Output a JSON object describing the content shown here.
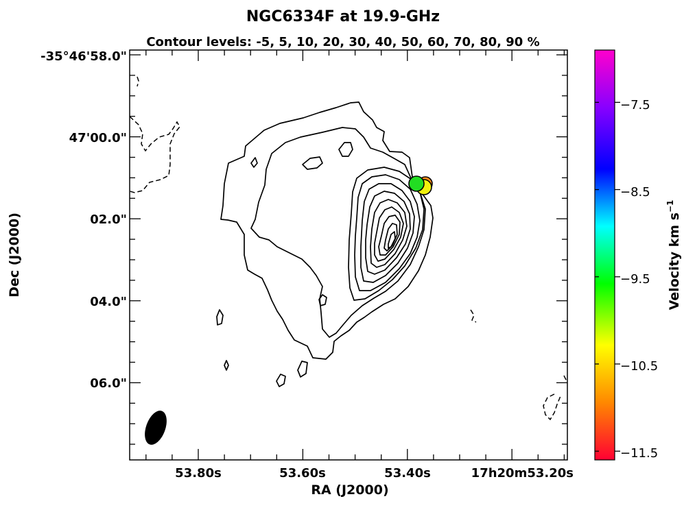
{
  "chart_data": {
    "type": "contour",
    "title": "NGC6334F at 19.9-GHz",
    "subtitle": "Contour levels: -5, 5, 10, 20, 30, 40, 50, 60, 70, 80, 90 %",
    "contour_levels_percent": [
      -5,
      5,
      10,
      20,
      30,
      40,
      50,
      60,
      70,
      80,
      90
    ],
    "xlabel": "RA (J2000)",
    "ylabel": "Dec (J2000)",
    "x_ticklabels": [
      "53.80s",
      "53.60s",
      "53.40s",
      "17h20m53.20s"
    ],
    "y_ticklabels": [
      "-35°46'58.0\"",
      "47'00.0\"",
      "02.0\"",
      "04.0\"",
      "06.0\""
    ],
    "colorbar": {
      "label": "Velocity km s",
      "label_superscript": "−1",
      "ticks": [
        "−7.5",
        "−8.5",
        "−9.5",
        "−10.5",
        "−11.5"
      ],
      "tick_values": [
        -7.5,
        -8.5,
        -9.5,
        -10.5,
        -11.5
      ],
      "range": [
        -6.9,
        -11.6
      ],
      "colormap": [
        "#ff0033",
        "#ff8800",
        "#ffff00",
        "#00ff00",
        "#00ffff",
        "#0000ff",
        "#8800ff",
        "#ff00cc"
      ]
    },
    "maser_spots": [
      {
        "velocity": -10.8,
        "color": "#ff8c1a"
      },
      {
        "velocity": -10.5,
        "color": "#f2f20d"
      },
      {
        "velocity": -9.8,
        "color": "#22dd22"
      }
    ],
    "beam": {
      "shape": "ellipse",
      "fill": "#000000"
    }
  }
}
